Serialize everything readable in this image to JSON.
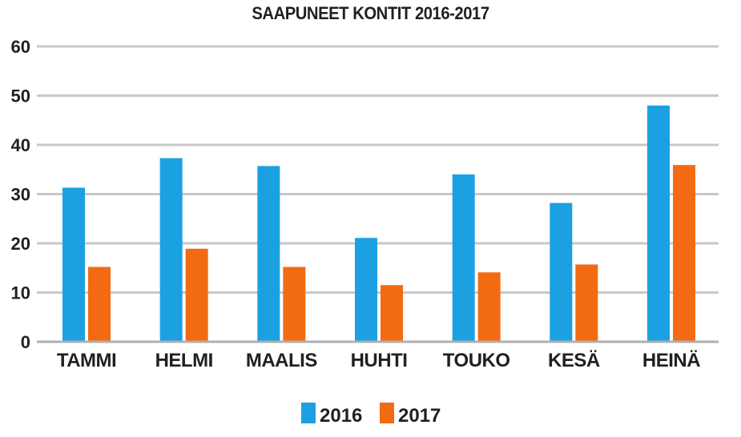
{
  "chart_data": {
    "type": "bar",
    "title": "SAAPUNEET KONTIT 2016-2017",
    "xlabel": "",
    "ylabel": "",
    "ylim": [
      0,
      60
    ],
    "yticks": [
      "0",
      "10",
      "20",
      "30",
      "40",
      "50",
      "60"
    ],
    "grid": true,
    "legend_position": "bottom",
    "categories": [
      "TAMMI",
      "HELMI",
      "MAALIS",
      "HUHTI",
      "TOUKO",
      "KESÄ",
      "HEINÄ"
    ],
    "series": [
      {
        "name": "2016",
        "color": "#1ba1e2",
        "values": [
          31.3,
          37.3,
          35.7,
          21.1,
          34.0,
          28.2,
          48.0
        ]
      },
      {
        "name": "2017",
        "color": "#f26b12",
        "values": [
          15.2,
          18.9,
          15.2,
          11.5,
          14.1,
          15.7,
          35.9
        ]
      }
    ]
  }
}
